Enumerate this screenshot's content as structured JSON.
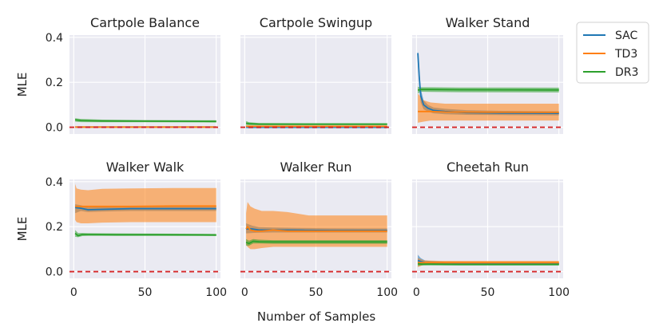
{
  "chart_data": {
    "type": "line",
    "xlabel": "Number of Samples",
    "ylabel": "MLE",
    "xlim": [
      -3,
      103
    ],
    "ylim": [
      -0.03,
      0.41
    ],
    "x_ticks": [
      0,
      50,
      100
    ],
    "y_ticks": [
      0.0,
      0.2,
      0.4
    ],
    "y_tick_labels": [
      "0.0",
      "0.2",
      "0.4"
    ],
    "grid": true,
    "legend_position": "outside-right-top",
    "reference_line": {
      "y": 0.0,
      "color": "#d62728",
      "style": "dashed"
    },
    "legend": [
      {
        "name": "SAC",
        "color": "#1f77b4"
      },
      {
        "name": "TD3",
        "color": "#ff7f0e"
      },
      {
        "name": "DR3",
        "color": "#2ca02c"
      }
    ],
    "panels": [
      {
        "title": "Cartpole Balance",
        "series": [
          {
            "name": "SAC",
            "x": [
              1,
              100
            ],
            "y": [
              0.001,
              0.001
            ],
            "lo": [
              0.0,
              0.0
            ],
            "hi": [
              0.002,
              0.002
            ]
          },
          {
            "name": "TD3",
            "x": [
              1,
              100
            ],
            "y": [
              0.001,
              0.001
            ],
            "lo": [
              0.0,
              0.0
            ],
            "hi": [
              0.002,
              0.002
            ]
          },
          {
            "name": "DR3",
            "x": [
              1,
              5,
              20,
              50,
              100
            ],
            "y": [
              0.033,
              0.03,
              0.028,
              0.027,
              0.026
            ],
            "lo": [
              0.025,
              0.023,
              0.022,
              0.022,
              0.021
            ],
            "hi": [
              0.04,
              0.037,
              0.034,
              0.032,
              0.031
            ]
          }
        ]
      },
      {
        "title": "Cartpole Swingup",
        "series": [
          {
            "name": "SAC",
            "x": [
              1,
              100
            ],
            "y": [
              0.002,
              0.002
            ],
            "lo": [
              -0.005,
              -0.005
            ],
            "hi": [
              0.006,
              0.006
            ]
          },
          {
            "name": "TD3",
            "x": [
              1,
              100
            ],
            "y": [
              0.004,
              0.004
            ],
            "lo": [
              0.0,
              0.0
            ],
            "hi": [
              0.008,
              0.008
            ]
          },
          {
            "name": "DR3",
            "x": [
              1,
              3,
              10,
              50,
              100
            ],
            "y": [
              0.018,
              0.016,
              0.014,
              0.014,
              0.014
            ],
            "lo": [
              0.01,
              0.009,
              0.009,
              0.009,
              0.009
            ],
            "hi": [
              0.028,
              0.022,
              0.019,
              0.018,
              0.018
            ]
          }
        ]
      },
      {
        "title": "Walker Stand",
        "series": [
          {
            "name": "SAC",
            "x": [
              1,
              2,
              3,
              5,
              8,
              12,
              20,
              35,
              60,
              100
            ],
            "y": [
              0.33,
              0.22,
              0.14,
              0.1,
              0.085,
              0.075,
              0.07,
              0.065,
              0.063,
              0.062
            ],
            "lo": [
              0.3,
              0.18,
              0.11,
              0.08,
              0.07,
              0.062,
              0.058,
              0.055,
              0.054,
              0.053
            ],
            "hi": [
              0.34,
              0.26,
              0.17,
              0.12,
              0.1,
              0.088,
              0.082,
              0.076,
              0.073,
              0.071
            ]
          },
          {
            "name": "TD3",
            "x": [
              1,
              5,
              10,
              20,
              50,
              100
            ],
            "y": [
              0.07,
              0.07,
              0.07,
              0.068,
              0.067,
              0.066
            ],
            "lo": [
              0.02,
              0.025,
              0.03,
              0.03,
              0.03,
              0.03
            ],
            "hi": [
              0.15,
              0.12,
              0.11,
              0.105,
              0.105,
              0.105
            ]
          },
          {
            "name": "DR3",
            "x": [
              1,
              3,
              10,
              30,
              100
            ],
            "y": [
              0.165,
              0.168,
              0.168,
              0.167,
              0.166
            ],
            "lo": [
              0.15,
              0.158,
              0.157,
              0.156,
              0.155
            ],
            "hi": [
              0.18,
              0.178,
              0.178,
              0.177,
              0.176
            ]
          }
        ]
      },
      {
        "title": "Walker Walk",
        "series": [
          {
            "name": "SAC",
            "x": [
              1,
              5,
              10,
              20,
              40,
              60,
              80,
              100
            ],
            "y": [
              0.285,
              0.282,
              0.275,
              0.277,
              0.28,
              0.28,
              0.28,
              0.28
            ],
            "lo": [
              0.26,
              0.27,
              0.265,
              0.267,
              0.27,
              0.27,
              0.27,
              0.27
            ],
            "hi": [
              0.3,
              0.295,
              0.287,
              0.288,
              0.29,
              0.29,
              0.29,
              0.29
            ]
          },
          {
            "name": "TD3",
            "x": [
              1,
              2,
              5,
              10,
              20,
              40,
              70,
              100
            ],
            "y": [
              0.29,
              0.29,
              0.29,
              0.29,
              0.29,
              0.29,
              0.292,
              0.292
            ],
            "lo": [
              0.23,
              0.22,
              0.215,
              0.215,
              0.218,
              0.22,
              0.22,
              0.22
            ],
            "hi": [
              0.39,
              0.37,
              0.365,
              0.362,
              0.368,
              0.37,
              0.372,
              0.372
            ]
          },
          {
            "name": "DR3",
            "x": [
              1,
              3,
              6,
              10,
              30,
              60,
              100
            ],
            "y": [
              0.17,
              0.16,
              0.165,
              0.165,
              0.164,
              0.164,
              0.163
            ],
            "lo": [
              0.155,
              0.153,
              0.158,
              0.159,
              0.159,
              0.159,
              0.158
            ],
            "hi": [
              0.185,
              0.172,
              0.172,
              0.171,
              0.17,
              0.169,
              0.168
            ]
          }
        ]
      },
      {
        "title": "Walker Run",
        "series": [
          {
            "name": "SAC",
            "x": [
              1,
              5,
              10,
              20,
              40,
              60,
              80,
              100
            ],
            "y": [
              0.19,
              0.19,
              0.185,
              0.185,
              0.184,
              0.183,
              0.183,
              0.183
            ],
            "lo": [
              0.17,
              0.172,
              0.173,
              0.174,
              0.174,
              0.174,
              0.174,
              0.174
            ],
            "hi": [
              0.215,
              0.205,
              0.198,
              0.196,
              0.194,
              0.193,
              0.192,
              0.192
            ]
          },
          {
            "name": "TD3",
            "x": [
              1,
              2,
              4,
              7,
              12,
              20,
              30,
              45,
              60,
              80,
              100
            ],
            "y": [
              0.19,
              0.2,
              0.185,
              0.18,
              0.18,
              0.185,
              0.18,
              0.18,
              0.18,
              0.18,
              0.18
            ],
            "lo": [
              0.12,
              0.11,
              0.1,
              0.1,
              0.105,
              0.11,
              0.11,
              0.11,
              0.11,
              0.11,
              0.11
            ],
            "hi": [
              0.26,
              0.31,
              0.29,
              0.28,
              0.27,
              0.27,
              0.265,
              0.25,
              0.25,
              0.25,
              0.25
            ]
          },
          {
            "name": "DR3",
            "x": [
              1,
              3,
              6,
              10,
              20,
              40,
              70,
              100
            ],
            "y": [
              0.13,
              0.125,
              0.135,
              0.133,
              0.132,
              0.132,
              0.132,
              0.132
            ],
            "lo": [
              0.115,
              0.115,
              0.125,
              0.125,
              0.124,
              0.124,
              0.124,
              0.124
            ],
            "hi": [
              0.145,
              0.138,
              0.145,
              0.142,
              0.14,
              0.14,
              0.14,
              0.14
            ]
          }
        ]
      },
      {
        "title": "Cheetah Run",
        "series": [
          {
            "name": "SAC",
            "x": [
              1,
              3,
              6,
              10,
              20,
              50,
              100
            ],
            "y": [
              0.05,
              0.045,
              0.04,
              0.038,
              0.036,
              0.035,
              0.035
            ],
            "lo": [
              0.035,
              0.034,
              0.032,
              0.031,
              0.03,
              0.029,
              0.029
            ],
            "hi": [
              0.075,
              0.06,
              0.05,
              0.047,
              0.044,
              0.042,
              0.041
            ]
          },
          {
            "name": "TD3",
            "x": [
              1,
              5,
              15,
              50,
              100
            ],
            "y": [
              0.04,
              0.04,
              0.04,
              0.04,
              0.04
            ],
            "lo": [
              0.02,
              0.03,
              0.032,
              0.033,
              0.033
            ],
            "hi": [
              0.06,
              0.05,
              0.048,
              0.048,
              0.048
            ]
          },
          {
            "name": "DR3",
            "x": [
              1,
              4,
              10,
              30,
              100
            ],
            "y": [
              0.035,
              0.033,
              0.033,
              0.032,
              0.032
            ],
            "lo": [
              0.025,
              0.027,
              0.028,
              0.027,
              0.027
            ],
            "hi": [
              0.045,
              0.039,
              0.038,
              0.037,
              0.037
            ]
          }
        ]
      }
    ]
  }
}
